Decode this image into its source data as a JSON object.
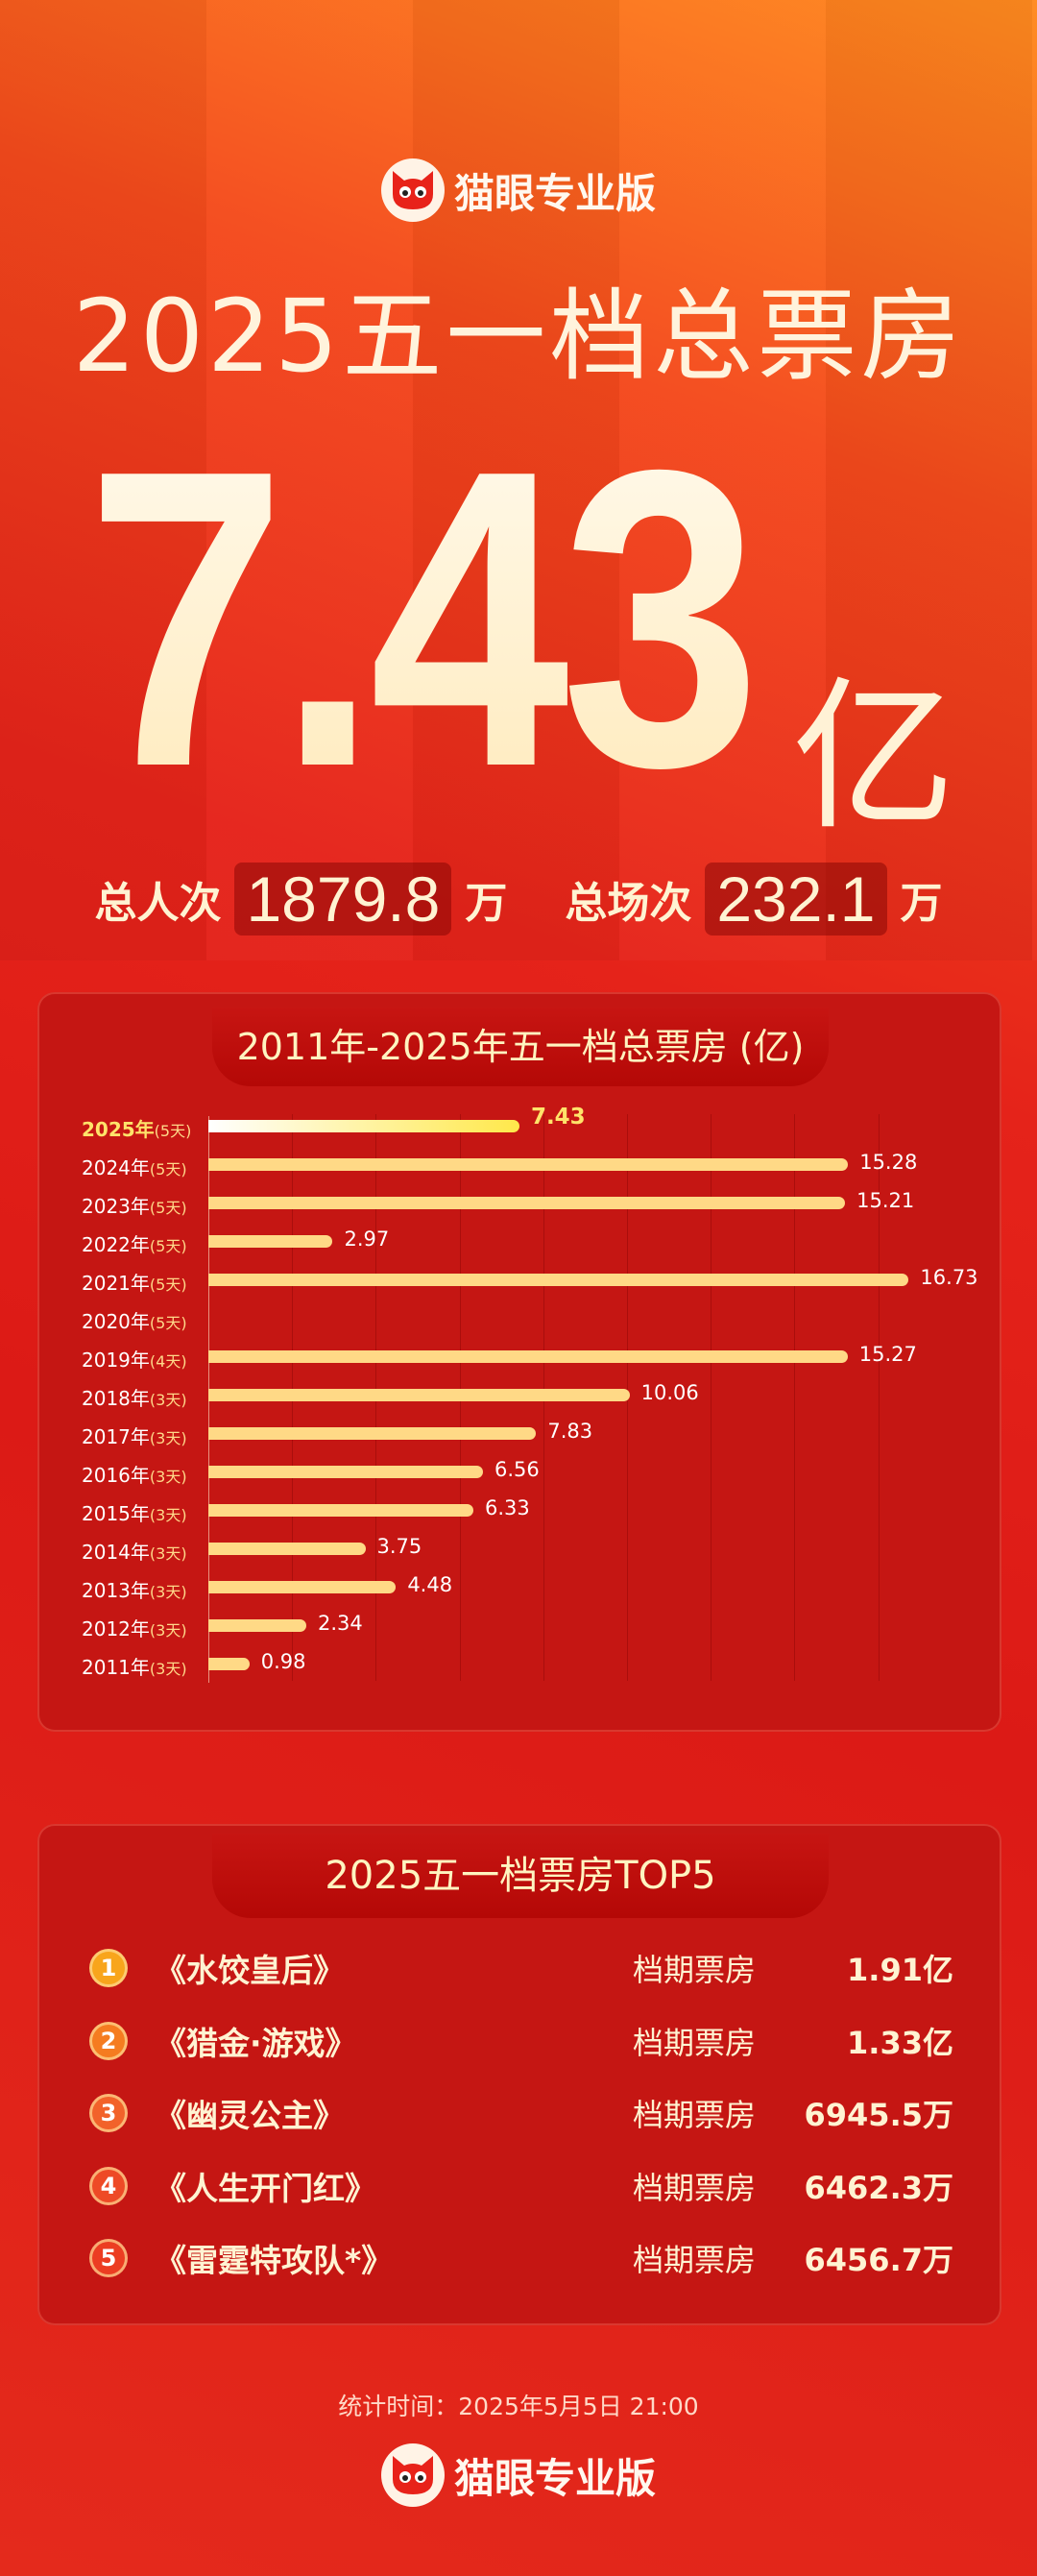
{
  "brand": {
    "name": "猫眼专业版",
    "icon": "cat-logo-icon"
  },
  "header": {
    "title": "2025五一档总票房",
    "total": "7.43",
    "unit": "亿"
  },
  "stats": [
    {
      "label": "总人次",
      "value": "1879.8",
      "unit": "万"
    },
    {
      "label": "总场次",
      "value": "232.1",
      "unit": "万"
    }
  ],
  "chart_data": {
    "type": "bar",
    "orientation": "horizontal",
    "title": "2011年-2025年五一档总票房 (亿)",
    "categories": [
      "2025年",
      "2024年",
      "2023年",
      "2022年",
      "2021年",
      "2020年",
      "2019年",
      "2018年",
      "2017年",
      "2016年",
      "2015年",
      "2014年",
      "2013年",
      "2012年",
      "2011年"
    ],
    "days": [
      "(5天)",
      "(5天)",
      "(5天)",
      "(5天)",
      "(5天)",
      "(5天)",
      "(4天)",
      "(3天)",
      "(3天)",
      "(3天)",
      "(3天)",
      "(3天)",
      "(3天)",
      "(3天)",
      "(3天)"
    ],
    "values": [
      7.43,
      15.28,
      15.21,
      2.97,
      16.73,
      null,
      15.27,
      10.06,
      7.83,
      6.56,
      6.33,
      3.75,
      4.48,
      2.34,
      0.98
    ],
    "value_labels": [
      "7.43",
      "15.28",
      "15.21",
      "2.97",
      "16.73",
      "",
      "15.27",
      "10.06",
      "7.83",
      "6.56",
      "6.33",
      "3.75",
      "4.48",
      "2.34",
      "0.98"
    ],
    "xlim": [
      0,
      18
    ],
    "grid": true,
    "bar_color": "#ffd986",
    "highlight_color": "#ffe84a"
  },
  "top5": {
    "title": "2025五一档票房TOP5",
    "metric_label": "档期票房",
    "items": [
      {
        "rank": "1",
        "name": "《水饺皇后》",
        "value": "1.91亿",
        "color": "#f8a51c"
      },
      {
        "rank": "2",
        "name": "《猎金·游戏》",
        "value": "1.33亿",
        "color": "#f57c20"
      },
      {
        "rank": "3",
        "name": "《幽灵公主》",
        "value": "6945.5万",
        "color": "#f2622a"
      },
      {
        "rank": "4",
        "name": "《人生开门红》",
        "value": "6462.3万",
        "color": "#ee4a26"
      },
      {
        "rank": "5",
        "name": "《雷霆特攻队*》",
        "value": "6456.7万",
        "color": "#ec3d22"
      }
    ]
  },
  "footer": {
    "stat_time": "统计时间：2025年5月5日  21:00"
  }
}
